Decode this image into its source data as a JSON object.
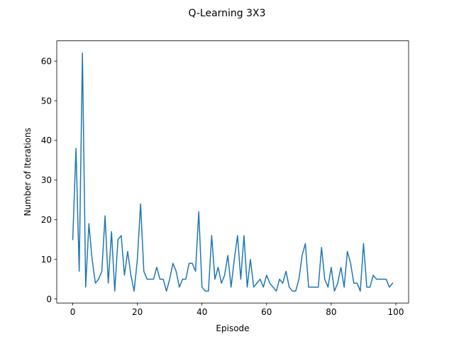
{
  "chart_data": {
    "type": "line",
    "title": "Q-Learning 3X3",
    "xlabel": "Episode",
    "ylabel": "Number of Iterations",
    "xlim": [
      -4.95,
      103.95
    ],
    "ylim": [
      -1,
      65.1
    ],
    "xticks": [
      0,
      20,
      40,
      60,
      80,
      100
    ],
    "yticks": [
      0,
      10,
      20,
      30,
      40,
      50,
      60
    ],
    "grid": false,
    "line_color": "#1f77b4",
    "x": [
      0,
      1,
      2,
      3,
      4,
      5,
      6,
      7,
      8,
      9,
      10,
      11,
      12,
      13,
      14,
      15,
      16,
      17,
      18,
      19,
      20,
      21,
      22,
      23,
      24,
      25,
      26,
      27,
      28,
      29,
      30,
      31,
      32,
      33,
      34,
      35,
      36,
      37,
      38,
      39,
      40,
      41,
      42,
      43,
      44,
      45,
      46,
      47,
      48,
      49,
      50,
      51,
      52,
      53,
      54,
      55,
      56,
      57,
      58,
      59,
      60,
      61,
      62,
      63,
      64,
      65,
      66,
      67,
      68,
      69,
      70,
      71,
      72,
      73,
      74,
      75,
      76,
      77,
      78,
      79,
      80,
      81,
      82,
      83,
      84,
      85,
      86,
      87,
      88,
      89,
      90,
      91,
      92,
      93,
      94,
      95,
      96,
      97,
      98,
      99
    ],
    "series": [
      {
        "values": [
          15,
          38,
          7,
          62,
          3,
          19,
          10,
          4,
          5,
          7,
          21,
          4,
          17,
          2,
          15,
          16,
          6,
          12,
          6,
          2,
          10,
          24,
          7,
          5,
          5,
          5,
          8,
          5,
          5,
          2,
          5,
          9,
          7,
          3,
          5,
          5,
          9,
          9,
          7,
          22,
          3,
          2,
          2,
          16,
          5,
          8,
          4,
          6,
          11,
          3,
          10,
          16,
          5,
          16,
          3,
          10,
          3,
          4,
          5,
          3,
          6,
          4,
          3,
          2,
          5,
          4,
          7,
          3,
          2,
          2,
          5,
          11,
          14,
          3,
          3,
          3,
          3,
          13,
          5,
          3,
          8,
          2,
          4,
          8,
          3,
          12,
          9,
          4,
          4,
          2,
          14,
          3,
          3,
          6,
          5,
          5,
          5,
          5,
          3,
          4
        ]
      }
    ]
  }
}
